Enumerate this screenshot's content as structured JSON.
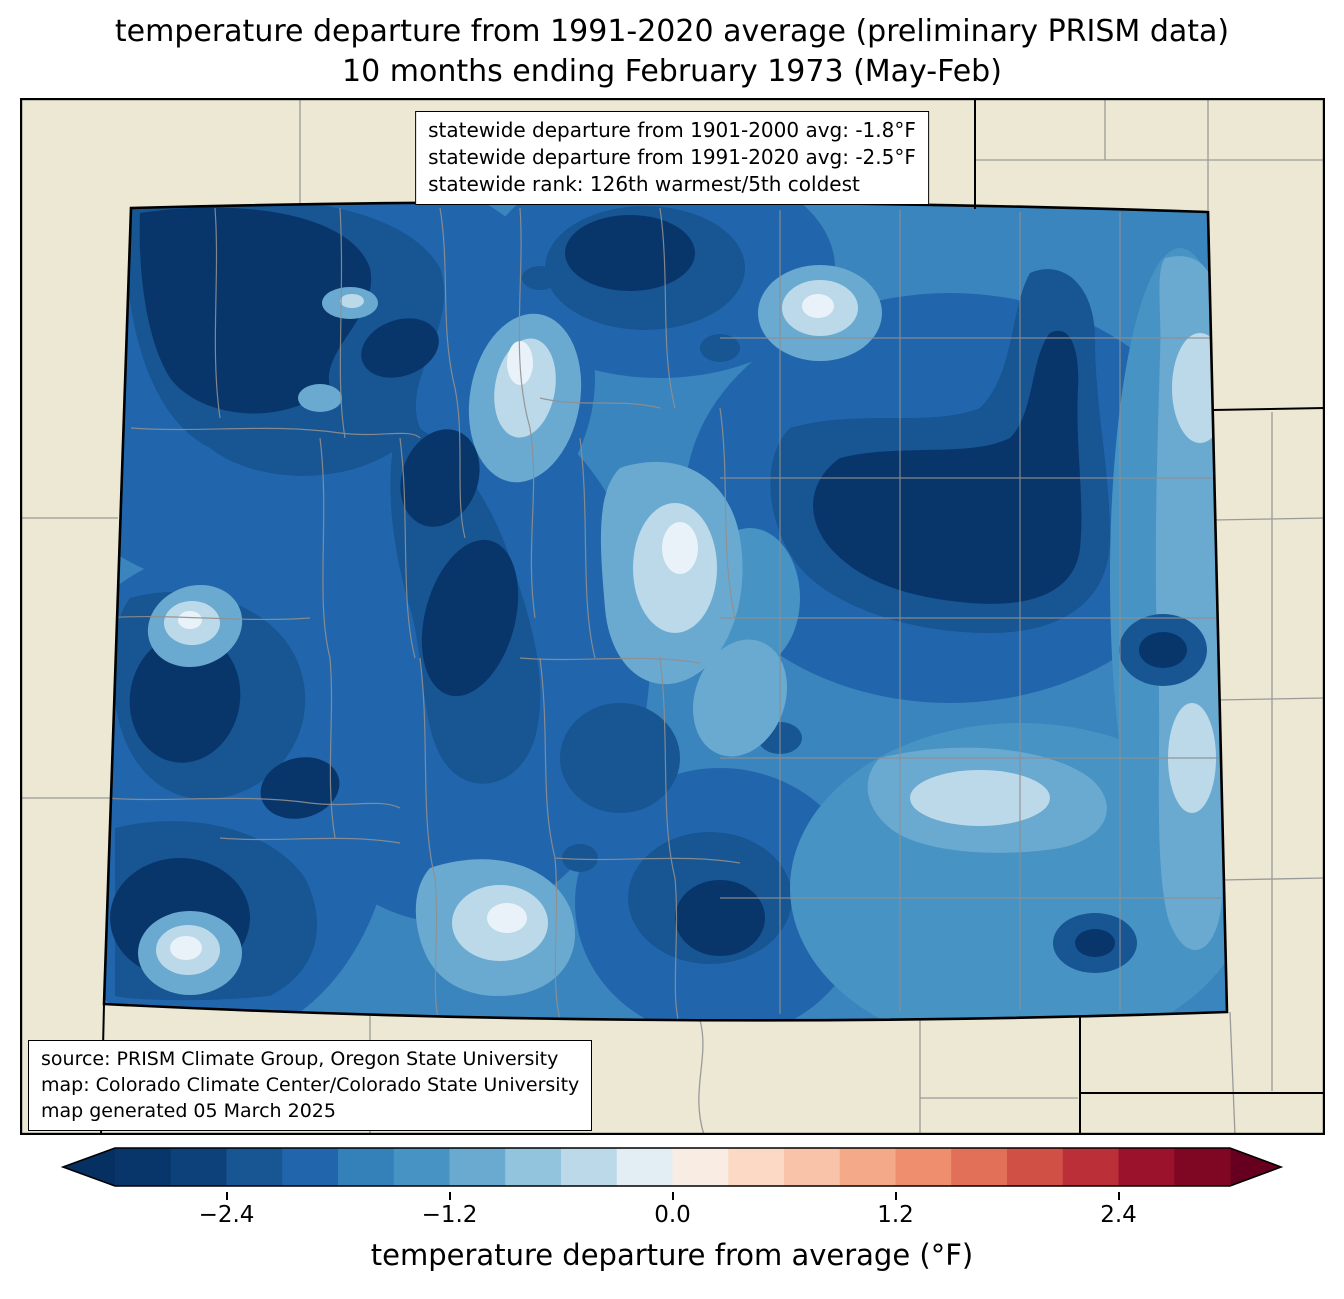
{
  "title": {
    "line1": "temperature departure from 1991-2020 average (preliminary PRISM data)",
    "line2": "10 months ending February 1973 (May-Feb)"
  },
  "stats_box": {
    "lines": [
      "statewide departure from 1901-2000 avg: -1.8°F",
      "statewide departure from 1991-2020 avg: -2.5°F",
      "statewide rank: 126th warmest/5th coldest"
    ]
  },
  "source_box": {
    "lines": [
      "source: PRISM Climate Group, Oregon State University",
      "map: Colorado Climate Center/Colorado State University",
      "map generated 05 March 2025"
    ]
  },
  "colorbar": {
    "label": "temperature departure from average (°F)",
    "range": [
      -3.0,
      3.0
    ],
    "ticks": [
      {
        "value": -2.4,
        "label": "−2.4"
      },
      {
        "value": -1.2,
        "label": "−1.2"
      },
      {
        "value": 0.0,
        "label": "0.0"
      },
      {
        "value": 1.2,
        "label": "1.2"
      },
      {
        "value": 2.4,
        "label": "2.4"
      }
    ],
    "segment_colors": [
      "#08366b",
      "#0d417a",
      "#175593",
      "#2166ac",
      "#3480b9",
      "#4794c4",
      "#6aaad1",
      "#93c4de",
      "#bcd9ea",
      "#e2edf4",
      "#f9ece3",
      "#fbd9c4",
      "#f8c3a8",
      "#f4a988",
      "#ee8e6e",
      "#e26f58",
      "#d05046",
      "#bb2f38",
      "#9b122c",
      "#7f0723"
    ],
    "under_color": "#053061",
    "over_color": "#67001f"
  },
  "map_colors": {
    "surrounding_land": "#ece8d4",
    "state_border": "#000000",
    "county_line": "#8f8f8f",
    "blue_bins": [
      "#08366b",
      "#175593",
      "#2166ac",
      "#3a85bd",
      "#4794c4",
      "#6aaad1",
      "#93c4de",
      "#bcd9ea",
      "#e2edf4",
      "#f3f8fb"
    ]
  },
  "chart_data": {
    "type": "heatmap",
    "title": "temperature departure from 1991-2020 average (preliminary PRISM data), 10 months ending February 1973 (May-Feb)",
    "region": "Colorado (with county boundaries, surrounded by neighboring states)",
    "variable": "temperature departure from average (°F)",
    "colorbar_range": [
      -3.0,
      3.0
    ],
    "colorbar_bin_width": 0.3,
    "colorbar_ticks": [
      -2.4,
      -1.2,
      0.0,
      1.2,
      2.4
    ],
    "statewide_stats": {
      "departure_from_1901_2000_avg_F": -1.8,
      "departure_from_1991_2020_avg_F": -2.5,
      "rank": "126th warmest/5th coldest"
    }
  }
}
